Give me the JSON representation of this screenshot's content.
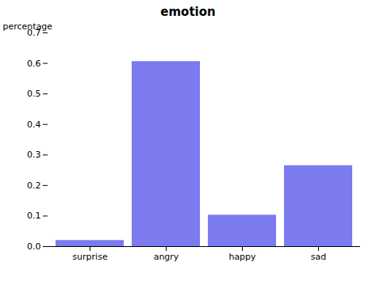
{
  "chart_data": {
    "type": "bar",
    "title": "emotion",
    "ylabel": "percentage",
    "categories": [
      "surprise",
      "angry",
      "happy",
      "sad"
    ],
    "values": [
      0.02,
      0.606,
      0.103,
      0.265
    ],
    "color": "#7b7bef",
    "ylim": [
      0.0,
      0.7
    ],
    "yticks": [
      {
        "value": 0.0,
        "label": "0.0"
      },
      0.1,
      0.2,
      0.3,
      0.4,
      0.5,
      0.6,
      0.7
    ],
    "grid": false
  }
}
